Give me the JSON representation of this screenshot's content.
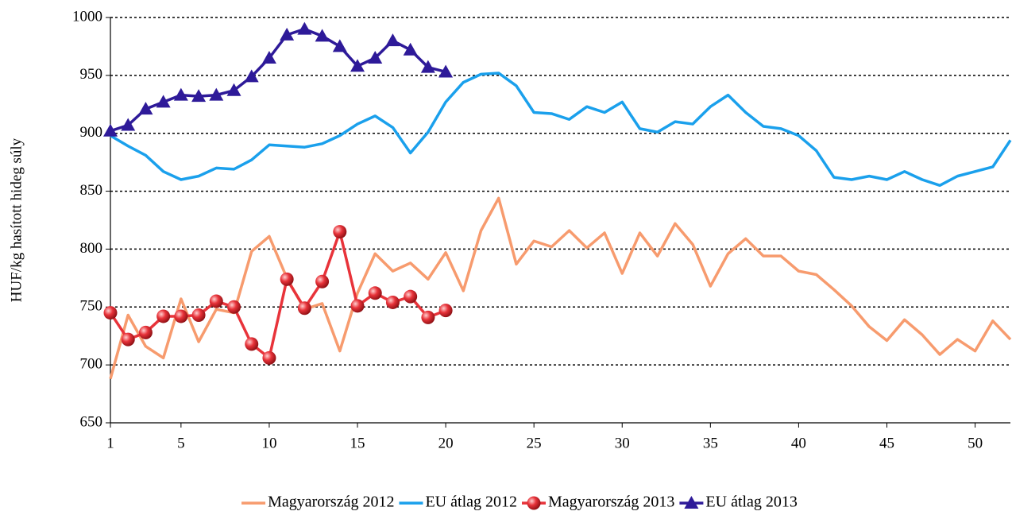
{
  "chart_data": {
    "type": "line",
    "y_label": "HUF/kg hasított hideg súly",
    "x": [
      1,
      2,
      3,
      4,
      5,
      6,
      7,
      8,
      9,
      10,
      11,
      12,
      13,
      14,
      15,
      16,
      17,
      18,
      19,
      20,
      21,
      22,
      23,
      24,
      25,
      26,
      27,
      28,
      29,
      30,
      31,
      32,
      33,
      34,
      35,
      36,
      37,
      38,
      39,
      40,
      41,
      42,
      43,
      44,
      45,
      46,
      47,
      48,
      49,
      50,
      51,
      52
    ],
    "xlim": [
      1,
      52
    ],
    "xticks": [
      1,
      5,
      10,
      15,
      20,
      25,
      30,
      35,
      40,
      45,
      50
    ],
    "ylim": [
      650,
      1000
    ],
    "yticks": [
      650,
      700,
      750,
      800,
      850,
      900,
      950,
      1000
    ],
    "grid": true,
    "legend": "bottom",
    "series": [
      {
        "name": "Magyarország 2012",
        "color": "#f79b6e",
        "marker": "none",
        "values": [
          688,
          743,
          716,
          706,
          757,
          720,
          748,
          745,
          798,
          811,
          775,
          748,
          753,
          712,
          762,
          796,
          781,
          788,
          774,
          797,
          764,
          816,
          844,
          787,
          807,
          802,
          816,
          801,
          814,
          779,
          814,
          794,
          822,
          804,
          768,
          796,
          809,
          794,
          794,
          781,
          778,
          765,
          751,
          733,
          721,
          739,
          726,
          709,
          722,
          712,
          738,
          722
        ]
      },
      {
        "name": "EU átlag 2012",
        "color": "#1aa0ec",
        "marker": "none",
        "values": [
          898,
          889,
          881,
          867,
          860,
          863,
          870,
          869,
          877,
          890,
          889,
          888,
          891,
          898,
          908,
          915,
          905,
          883,
          901,
          927,
          944,
          951,
          952,
          941,
          918,
          917,
          912,
          923,
          918,
          927,
          904,
          901,
          910,
          908,
          923,
          933,
          918,
          906,
          904,
          898,
          885,
          862,
          860,
          863,
          860,
          867,
          860,
          855,
          863,
          867,
          871,
          894
        ]
      },
      {
        "name": "Magyarország 2013",
        "color": "#e8333a",
        "marker": "circle",
        "values": [
          745,
          722,
          728,
          742,
          742,
          743,
          755,
          750,
          718,
          706,
          774,
          749,
          772,
          815,
          751,
          762,
          754,
          759,
          741,
          747,
          null,
          null,
          null,
          null,
          null,
          null,
          null,
          null,
          null,
          null,
          null,
          null,
          null,
          null,
          null,
          null,
          null,
          null,
          null,
          null,
          null,
          null,
          null,
          null,
          null,
          null,
          null,
          null,
          null,
          null,
          null,
          null
        ]
      },
      {
        "name": "EU átlag 2013",
        "color": "#2e1a99",
        "marker": "triangle",
        "values": [
          902,
          907,
          921,
          927,
          933,
          932,
          933,
          937,
          949,
          965,
          985,
          990,
          984,
          975,
          958,
          965,
          980,
          972,
          957,
          953,
          null,
          null,
          null,
          null,
          null,
          null,
          null,
          null,
          null,
          null,
          null,
          null,
          null,
          null,
          null,
          null,
          null,
          null,
          null,
          null,
          null,
          null,
          null,
          null,
          null,
          null,
          null,
          null,
          null,
          null,
          null,
          null
        ]
      }
    ]
  }
}
